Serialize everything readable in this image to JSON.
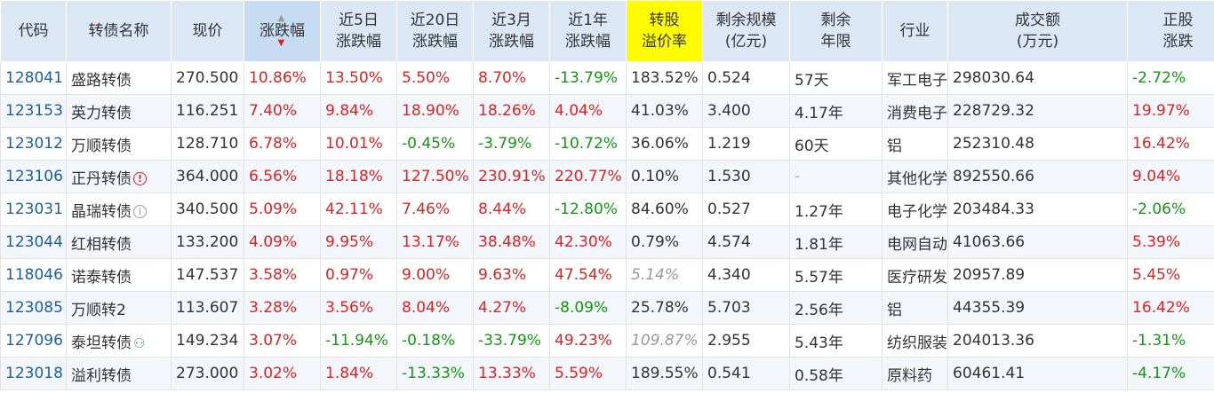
{
  "headers": {
    "code": "代码",
    "name": "转债名称",
    "price": "现价",
    "change_l1": "涨跌幅",
    "change_5d_l1": "近5日",
    "change_5d_l2": "涨跌幅",
    "change_20d_l1": "近20日",
    "change_20d_l2": "涨跌幅",
    "change_3m_l1": "近3月",
    "change_3m_l2": "涨跌幅",
    "change_1y_l1": "近1年",
    "change_1y_l2": "涨跌幅",
    "premium_l1": "转股",
    "premium_l2": "溢价率",
    "scale_l1": "剩余规模",
    "scale_l2": "(亿元)",
    "term_l1": "剩余",
    "term_l2": "年限",
    "industry": "行业",
    "volume_l1": "成交额",
    "volume_l2": "(万元)",
    "stock_l1": "正股",
    "stock_l2": "涨跌"
  },
  "sort_icon": "sort-arrows-icon",
  "colors": {
    "up": "#e02222",
    "down": "#119911",
    "header_bg": "#dbe7f5",
    "highlight": "#fffc00",
    "code": "#1b5fa8"
  },
  "rows": [
    {
      "code": "128041",
      "name": "盛路转债",
      "icon": "",
      "price": "270.500",
      "chg": "10.86%",
      "d5": "13.50%",
      "d20": "5.50%",
      "m3": "8.70%",
      "y1": "-13.79%",
      "premium": "183.52%",
      "premium_italic": false,
      "scale": "0.524",
      "term": "57天",
      "industry": "军工电子",
      "volume": "298030.64",
      "stock": "-2.72%"
    },
    {
      "code": "123153",
      "name": "英力转债",
      "icon": "",
      "price": "116.251",
      "chg": "7.40%",
      "d5": "9.84%",
      "d20": "18.90%",
      "m3": "18.26%",
      "y1": "4.04%",
      "premium": "41.03%",
      "premium_italic": false,
      "scale": "3.400",
      "term": "4.17年",
      "industry": "消费电子零部件及组装",
      "volume": "228729.32",
      "stock": "19.97%"
    },
    {
      "code": "123012",
      "name": "万顺转债",
      "icon": "",
      "price": "128.710",
      "chg": "6.78%",
      "d5": "10.01%",
      "d20": "-0.45%",
      "m3": "-3.79%",
      "y1": "-10.72%",
      "premium": "36.06%",
      "premium_italic": false,
      "scale": "1.219",
      "term": "60天",
      "industry": "铝",
      "volume": "252310.48",
      "stock": "16.42%"
    },
    {
      "code": "123106",
      "name": "正丹转债",
      "icon": "alert-red",
      "price": "364.000",
      "chg": "6.56%",
      "d5": "18.18%",
      "d20": "127.50%",
      "m3": "230.91%",
      "y1": "220.77%",
      "premium": "0.10%",
      "premium_italic": false,
      "scale": "1.530",
      "term": "-",
      "industry": "其他化学制品",
      "volume": "892550.66",
      "stock": "9.04%"
    },
    {
      "code": "123031",
      "name": "晶瑞转债",
      "icon": "info-gray",
      "price": "340.500",
      "chg": "5.09%",
      "d5": "42.11%",
      "d20": "7.46%",
      "m3": "8.44%",
      "y1": "-12.80%",
      "premium": "84.60%",
      "premium_italic": false,
      "scale": "0.527",
      "term": "1.27年",
      "industry": "电子化学品",
      "volume": "203484.33",
      "stock": "-2.06%"
    },
    {
      "code": "123044",
      "name": "红相转债",
      "icon": "",
      "price": "133.200",
      "chg": "4.09%",
      "d5": "9.95%",
      "d20": "13.17%",
      "m3": "38.48%",
      "y1": "42.30%",
      "premium": "0.79%",
      "premium_italic": false,
      "scale": "4.574",
      "term": "1.81年",
      "industry": "电网自动化设备",
      "volume": "41063.66",
      "stock": "5.39%"
    },
    {
      "code": "118046",
      "name": "诺泰转债",
      "icon": "",
      "price": "147.537",
      "chg": "3.58%",
      "d5": "0.97%",
      "d20": "9.00%",
      "m3": "9.63%",
      "y1": "47.54%",
      "premium": "5.14%",
      "premium_italic": true,
      "scale": "4.340",
      "term": "5.57年",
      "industry": "医疗研发外包",
      "volume": "20957.89",
      "stock": "5.45%"
    },
    {
      "code": "123085",
      "name": "万顺转2",
      "icon": "",
      "price": "113.607",
      "chg": "3.28%",
      "d5": "3.56%",
      "d20": "8.04%",
      "m3": "4.27%",
      "y1": "-8.09%",
      "premium": "25.78%",
      "premium_italic": false,
      "scale": "5.703",
      "term": "2.56年",
      "industry": "铝",
      "volume": "44355.39",
      "stock": "16.42%"
    },
    {
      "code": "127096",
      "name": "泰坦转债",
      "icon": "person-blue",
      "price": "149.234",
      "chg": "3.07%",
      "d5": "-11.94%",
      "d20": "-0.18%",
      "m3": "-33.79%",
      "y1": "49.23%",
      "premium": "109.87%",
      "premium_italic": true,
      "scale": "2.955",
      "term": "5.43年",
      "industry": "纺织服装设备",
      "volume": "204013.36",
      "stock": "-1.31%"
    },
    {
      "code": "123018",
      "name": "溢利转债",
      "icon": "",
      "price": "273.000",
      "chg": "3.02%",
      "d5": "1.84%",
      "d20": "-13.33%",
      "m3": "13.33%",
      "y1": "5.59%",
      "premium": "189.55%",
      "premium_italic": false,
      "scale": "0.541",
      "term": "0.58年",
      "industry": "原料药",
      "volume": "60461.41",
      "stock": "-4.17%"
    }
  ]
}
